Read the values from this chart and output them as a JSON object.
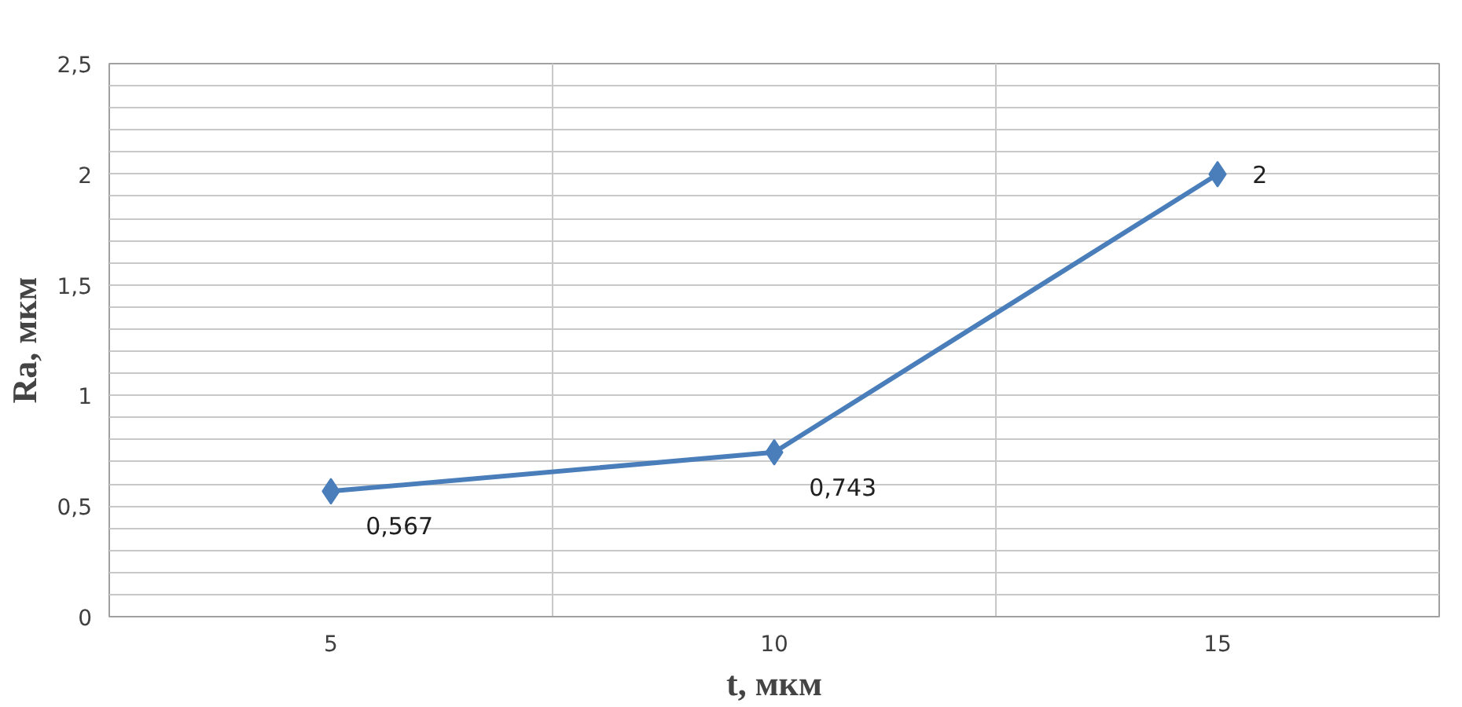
{
  "chart_data": {
    "type": "line",
    "xlabel": "t, мкм",
    "ylabel": "Ra, мкм",
    "categories": [
      "5",
      "10",
      "15"
    ],
    "series": [
      {
        "color": "#4a7ebb",
        "values": [
          0.567,
          0.743,
          2
        ]
      }
    ],
    "value_labels": [
      "0,567",
      "0,743",
      "2"
    ],
    "ylim": [
      0,
      2.5
    ],
    "yticks": [
      0,
      {
        "value": 0.5,
        "label": "0,5"
      },
      1,
      {
        "value": 1.5,
        "label": "1,5"
      },
      2,
      {
        "value": 2.5,
        "label": "2,5"
      }
    ],
    "grid": true,
    "marker": "diamond",
    "line_style": "solid"
  }
}
